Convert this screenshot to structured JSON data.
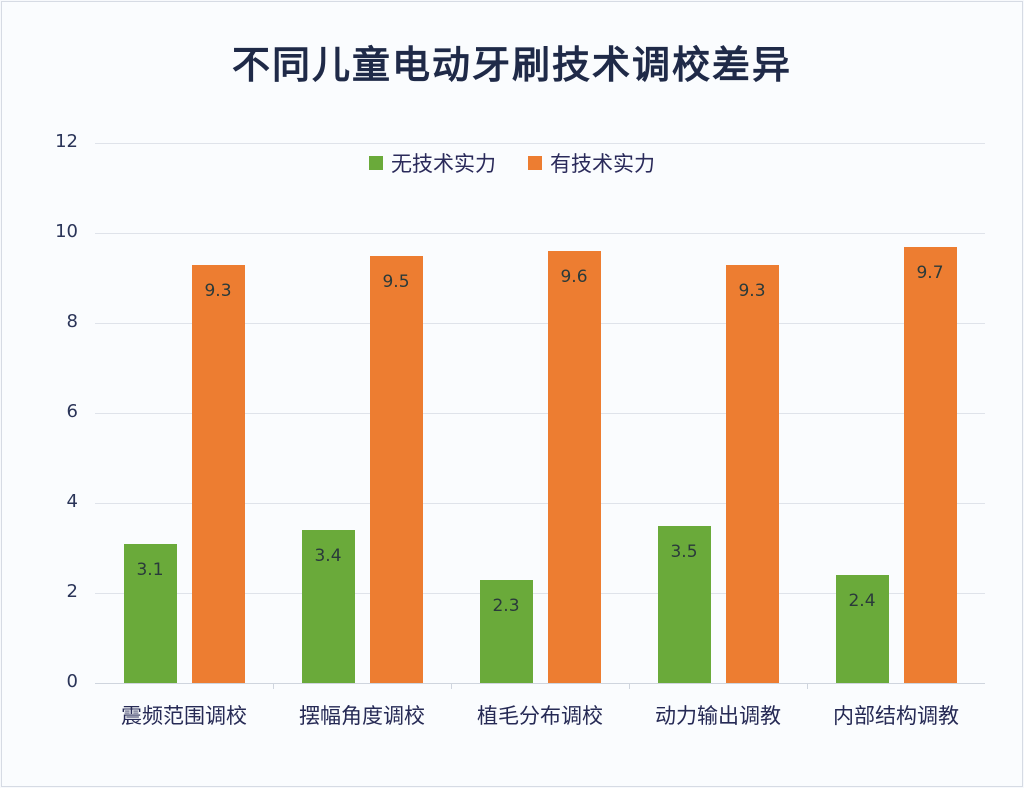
{
  "colors": {
    "series_green": "#6aaa3a",
    "series_orange": "#ed7d31",
    "title": "#1f2a48"
  },
  "chart_data": {
    "type": "bar",
    "title": "不同儿童电动牙刷技术调校差异",
    "xlabel": "",
    "ylabel": "",
    "ylim": [
      0,
      12
    ],
    "yticks": [
      0,
      2,
      4,
      6,
      8,
      10,
      12
    ],
    "grid": true,
    "legend_position": "top",
    "categories": [
      "震频范围调校",
      "摆幅角度调校",
      "植毛分布调校",
      "动力输出调教",
      "内部结构调教"
    ],
    "series": [
      {
        "name": "无技术实力",
        "color": "#6aaa3a",
        "values": [
          3.1,
          3.4,
          2.3,
          3.5,
          2.4
        ]
      },
      {
        "name": "有技术实力",
        "color": "#ed7d31",
        "values": [
          9.3,
          9.5,
          9.6,
          9.3,
          9.7
        ]
      }
    ]
  }
}
